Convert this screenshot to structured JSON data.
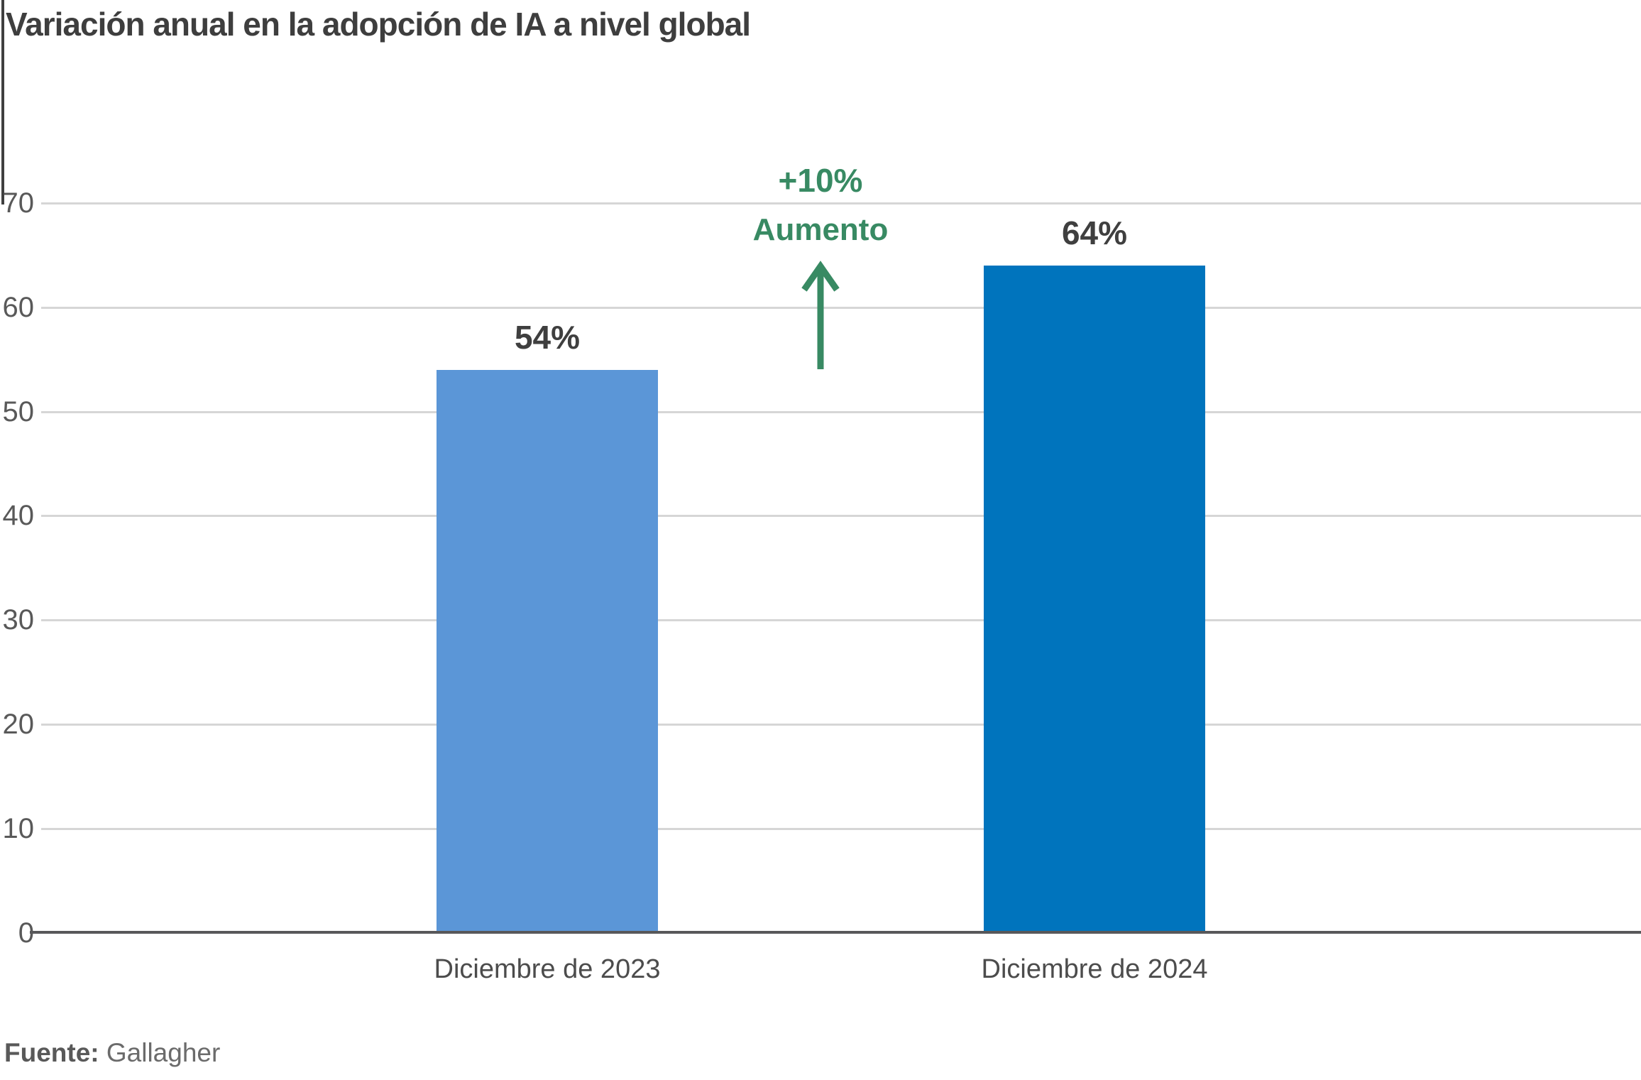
{
  "title": "Variación anual en la adopción de IA a nivel global",
  "source": {
    "label": "Fuente:",
    "value": " Gallagher"
  },
  "annotation": {
    "delta": "+10%",
    "word": "Aumento"
  },
  "colors": {
    "bar_2023": "#5b96d7",
    "bar_2024": "#0074bd",
    "annotation_green": "#388a63",
    "gridline": "#d6d6d6",
    "axis_line": "#58585a",
    "title_text": "#3e3e3e",
    "tick_text": "#595959",
    "value_label_text": "#3f3f3f"
  },
  "chart_data": {
    "type": "bar",
    "title": "Variación anual en la adopción de IA a nivel global",
    "categories": [
      "Diciembre de 2023",
      "Diciembre de 2024"
    ],
    "values": [
      54,
      64
    ],
    "value_labels": [
      "54%",
      "64%"
    ],
    "series_colors": [
      "#5b96d7",
      "#0074bd"
    ],
    "xlabel": "",
    "ylabel": "",
    "ylim": [
      0,
      70
    ],
    "yticks": [
      0,
      10,
      20,
      30,
      40,
      50,
      60,
      70
    ],
    "grid": true,
    "legend": false,
    "annotation": {
      "lines": [
        "+10%",
        "Aumento"
      ],
      "arrow_direction": "up",
      "color": "#388a63",
      "meaning": "increase of 10 percentage points from 2023 to 2024"
    },
    "source": "Fuente: Gallagher"
  }
}
